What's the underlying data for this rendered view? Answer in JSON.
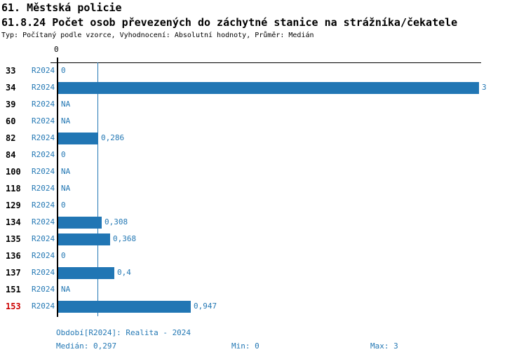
{
  "header": {
    "title": "61. Městská policie",
    "subtitle": "61.8.24 Počet osob převezených do záchytné stanice na strážníka/čekatele",
    "meta": "Typ: Počítaný podle vzorce, Vyhodnocení: Absolutní hodnoty, Průměr: Medián"
  },
  "chart_data": {
    "type": "bar",
    "orientation": "horizontal",
    "title": "61.8.24 Počet osob převezených do záchytné stanice na strážníka/čekatele",
    "xlim": [
      0,
      3
    ],
    "axis_tick_labels": [
      "0"
    ],
    "median_value": 0.297,
    "median_line": true,
    "legend_position": "none",
    "grid": false,
    "categories": [
      "33",
      "34",
      "39",
      "60",
      "82",
      "84",
      "100",
      "118",
      "129",
      "134",
      "135",
      "136",
      "137",
      "151",
      "153"
    ],
    "rows": [
      {
        "id": "33",
        "period": "R2024",
        "value": 0,
        "value_label": "0",
        "highlight": false
      },
      {
        "id": "34",
        "period": "R2024",
        "value": 3,
        "value_label": "3",
        "highlight": false
      },
      {
        "id": "39",
        "period": "R2024",
        "value": null,
        "value_label": "NA",
        "highlight": false
      },
      {
        "id": "60",
        "period": "R2024",
        "value": null,
        "value_label": "NA",
        "highlight": false
      },
      {
        "id": "82",
        "period": "R2024",
        "value": 0.286,
        "value_label": "0,286",
        "highlight": false
      },
      {
        "id": "84",
        "period": "R2024",
        "value": 0,
        "value_label": "0",
        "highlight": false
      },
      {
        "id": "100",
        "period": "R2024",
        "value": null,
        "value_label": "NA",
        "highlight": false
      },
      {
        "id": "118",
        "period": "R2024",
        "value": null,
        "value_label": "NA",
        "highlight": false
      },
      {
        "id": "129",
        "period": "R2024",
        "value": 0,
        "value_label": "0",
        "highlight": false
      },
      {
        "id": "134",
        "period": "R2024",
        "value": 0.308,
        "value_label": "0,308",
        "highlight": false
      },
      {
        "id": "135",
        "period": "R2024",
        "value": 0.368,
        "value_label": "0,368",
        "highlight": false
      },
      {
        "id": "136",
        "period": "R2024",
        "value": 0,
        "value_label": "0",
        "highlight": false
      },
      {
        "id": "137",
        "period": "R2024",
        "value": 0.4,
        "value_label": "0,4",
        "highlight": false
      },
      {
        "id": "151",
        "period": "R2024",
        "value": null,
        "value_label": "NA",
        "highlight": false
      },
      {
        "id": "153",
        "period": "R2024",
        "value": 0.947,
        "value_label": "0,947",
        "highlight": true
      }
    ]
  },
  "footer": {
    "period_line": "Období[R2024]: Realita - 2024",
    "median": "Medián: 0,297",
    "min": "Min: 0",
    "max": "Max: 3"
  },
  "colors": {
    "bar_blue": "#2176b4",
    "text_blue": "#2478b4",
    "highlight_red": "#cc0000",
    "axis_black": "#000000",
    "background": "#ffffff"
  }
}
